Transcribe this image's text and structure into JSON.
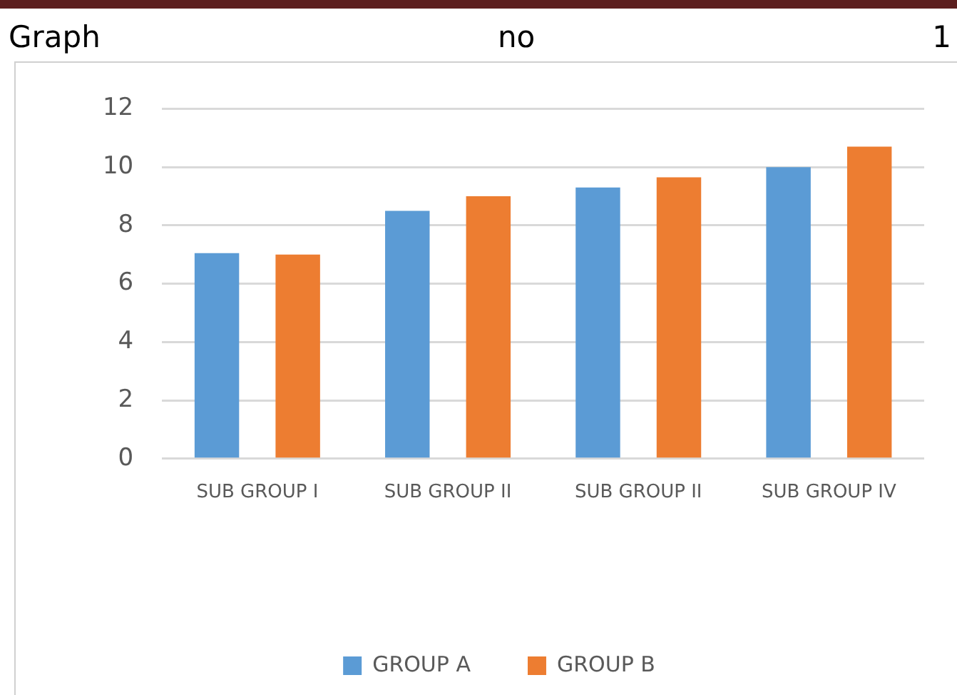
{
  "chart_data": {
    "type": "bar",
    "title": "Graph no 1",
    "categories": [
      "SUB GROUP I",
      "SUB GROUP II",
      "SUB GROUP II",
      "SUB GROUP IV"
    ],
    "series": [
      {
        "name": "GROUP A",
        "color": "#5b9bd5",
        "values": [
          7.05,
          8.5,
          9.3,
          10.0
        ]
      },
      {
        "name": "GROUP B",
        "color": "#ed7d31",
        "values": [
          7.0,
          9.0,
          9.65,
          10.7
        ]
      }
    ],
    "ylim": [
      0,
      12
    ],
    "yticks": [
      0,
      2,
      4,
      6,
      8,
      10,
      12
    ],
    "grid": "y",
    "legend": "bottom"
  }
}
